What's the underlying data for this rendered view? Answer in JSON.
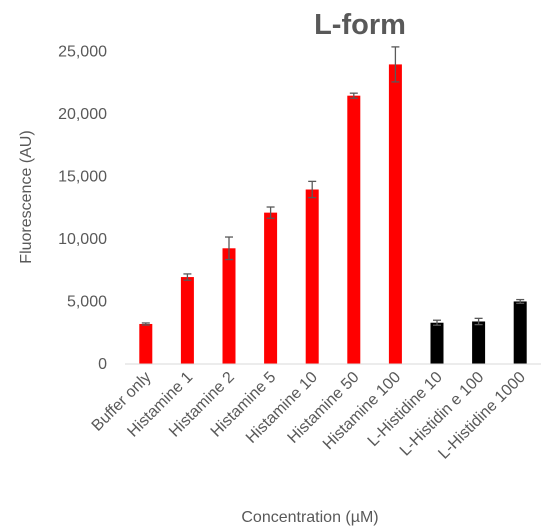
{
  "chart_data": {
    "type": "bar",
    "title": "L-form",
    "xlabel": "Concentration (µM)",
    "ylabel": "Fluorescence (AU)",
    "ylim": [
      0,
      27500
    ],
    "yticks": [
      0,
      5000,
      10000,
      15000,
      20000,
      25000
    ],
    "ytick_labels": [
      "0",
      "5,000",
      "10,000",
      "15,000",
      "20,000",
      "25,000"
    ],
    "grid": false,
    "categories": [
      "Buffer only",
      "Histamine 1",
      "Histamine 2",
      "Histamine 5",
      "Histamine 10",
      "Histamine 50",
      "Histamine 100",
      "L-Histidine 10",
      "L-Histidin e 100",
      "L-Histidine 1000"
    ],
    "values": [
      3200,
      6950,
      9250,
      12100,
      13950,
      21450,
      23950,
      3300,
      3400,
      5000
    ],
    "errors": [
      80,
      250,
      900,
      450,
      650,
      200,
      1400,
      200,
      250,
      150
    ],
    "colors": [
      "#ff0000",
      "#ff0000",
      "#ff0000",
      "#ff0000",
      "#ff0000",
      "#ff0000",
      "#ff0000",
      "#000000",
      "#000000",
      "#000000"
    ],
    "error_bar_color": "#595959"
  }
}
